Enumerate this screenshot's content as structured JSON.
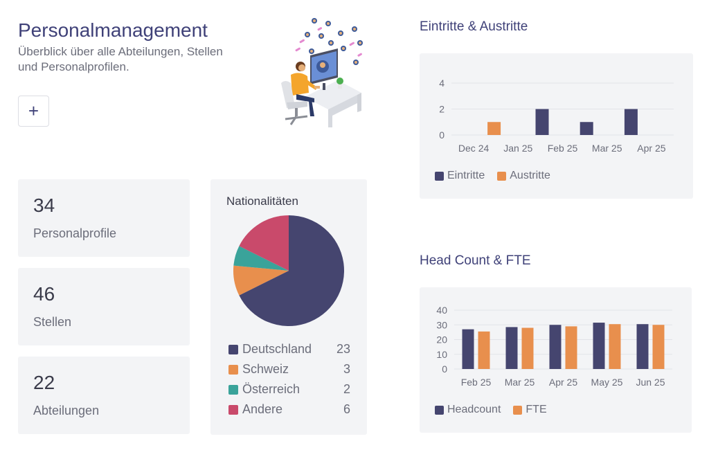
{
  "header": {
    "title": "Personalmanagement",
    "subtitle": "Überblick über alle Abteilungen, Stellen und Personalprofilen.",
    "add_label": "+"
  },
  "stats": [
    {
      "value": "34",
      "label": "Personalprofile"
    },
    {
      "value": "46",
      "label": "Stellen"
    },
    {
      "value": "22",
      "label": "Abteilungen"
    }
  ],
  "colors": {
    "navy": "#45456f",
    "orange": "#e88f4d",
    "teal": "#3aa39a",
    "pink": "#c94a6b"
  },
  "chart_data": [
    {
      "type": "pie",
      "title": "Nationalitäten",
      "slices": [
        {
          "name": "Deutschland",
          "value": 23,
          "color": "#45456f"
        },
        {
          "name": "Schweiz",
          "value": 3,
          "color": "#e88f4d"
        },
        {
          "name": "Österreich",
          "value": 2,
          "color": "#3aa39a"
        },
        {
          "name": "Andere",
          "value": 6,
          "color": "#c94a6b"
        }
      ]
    },
    {
      "type": "bar",
      "title": "Eintritte & Austritte",
      "categories": [
        "Dec 24",
        "Jan 25",
        "Feb 25",
        "Mar 25",
        "Apr 25"
      ],
      "series": [
        {
          "name": "Eintritte",
          "values": [
            0,
            0,
            2,
            1,
            2
          ],
          "color": "#45456f"
        },
        {
          "name": "Austritte",
          "values": [
            1,
            0,
            0,
            0,
            0
          ],
          "color": "#e88f4d"
        }
      ],
      "ylim": [
        0,
        4
      ],
      "yticks": [
        0,
        2,
        4
      ],
      "grid": true,
      "legend": "bottom-left"
    },
    {
      "type": "bar",
      "title": "Head Count & FTE",
      "categories": [
        "Feb 25",
        "Mar 25",
        "Apr 25",
        "May 25",
        "Jun 25"
      ],
      "series": [
        {
          "name": "Headcount",
          "values": [
            27,
            28.5,
            30,
            31.5,
            30.5
          ],
          "color": "#45456f"
        },
        {
          "name": "FTE",
          "values": [
            25.5,
            28,
            29,
            30.5,
            30
          ],
          "color": "#e88f4d"
        }
      ],
      "ylim": [
        0,
        40
      ],
      "yticks": [
        0,
        10,
        20,
        30,
        40
      ],
      "grid": true,
      "legend": "bottom-left"
    }
  ]
}
